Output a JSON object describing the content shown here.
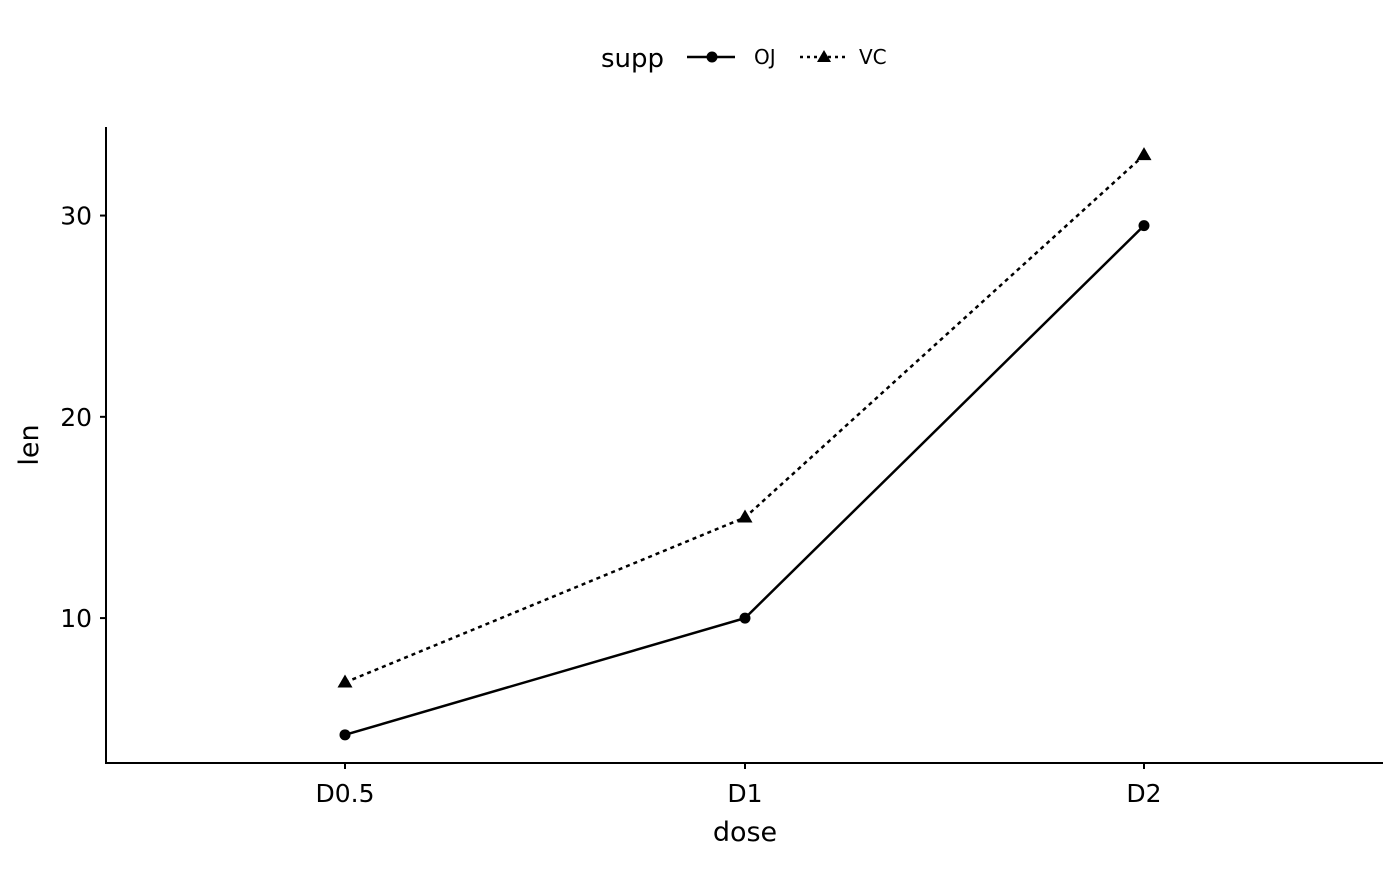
{
  "chart_data": {
    "type": "line",
    "title": "",
    "xlabel": "dose",
    "ylabel": "len",
    "categories": [
      "D0.5",
      "D1",
      "D2"
    ],
    "series": [
      {
        "name": "OJ",
        "values": [
          4.2,
          10.0,
          29.5
        ],
        "marker": "circle",
        "linestyle": "solid"
      },
      {
        "name": "VC",
        "values": [
          6.8,
          15.0,
          33.0
        ],
        "marker": "triangle",
        "linestyle": "dotted"
      }
    ],
    "yticks": [
      10,
      20,
      30
    ],
    "ytick_labels": [
      "10",
      "20",
      "30"
    ],
    "ylim": [
      2.8,
      34.4
    ],
    "grid": false,
    "legend": {
      "title": "supp",
      "placement": "top",
      "entries": [
        "OJ",
        "VC"
      ]
    },
    "color": "#000000"
  }
}
